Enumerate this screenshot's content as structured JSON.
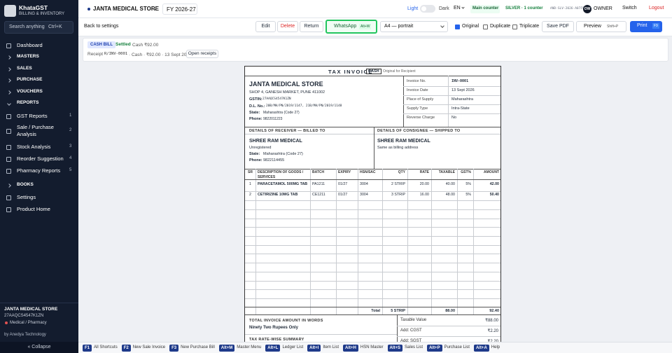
{
  "sidebar": {
    "brand": "KhataGST",
    "tagline": "BILLING & INVENTORY",
    "search": "Search anything",
    "search_key": "Ctrl+K",
    "nav": [
      "Dashboard",
      "MASTERS",
      "SALES",
      "PURCHASE",
      "VOUCHERS",
      "REPORTS"
    ],
    "reports": [
      {
        "label": "GST Reports",
        "key": "1"
      },
      {
        "label": "Sale / Purchase Analysis",
        "key": "2"
      },
      {
        "label": "Stock Analysis",
        "key": "3"
      },
      {
        "label": "Reorder Suggestion",
        "key": "4"
      },
      {
        "label": "Pharmacy Reports",
        "key": "5"
      }
    ],
    "nav_bottom": [
      "BOOKS",
      "Settings",
      "Product Home"
    ],
    "company": {
      "name": "JANTA MEDICAL STORE",
      "gstin": "27AAQCS4547K1ZN",
      "type": "Medical / Pharmacy"
    },
    "credit": "by Anedya Technology",
    "collapse": "« Collapse"
  },
  "topbar": {
    "company": "JANTA MEDICAL STORE",
    "fy": "FY 2026-27",
    "light": "Light",
    "dark": "Dark",
    "lang": "EN",
    "counter": "Main counter",
    "plan": "SILVER · 1 counter",
    "license": "AND-SLV-2026-A07F97",
    "avatar": "OW",
    "user": "OWNER",
    "switch": "Switch",
    "logout": "Logout"
  },
  "toolbar": {
    "back": "Back to settings",
    "edit": "Edit",
    "delete": "Delete",
    "return": "Return",
    "whatsapp": "WhatsApp",
    "whatsapp_key": "Alt+W",
    "paper": "A4 — portrait",
    "original": "Original",
    "duplicate": "Duplicate",
    "triplicate": "Triplicate",
    "save_pdf": "Save PDF",
    "preview": "Preview",
    "preview_key": "Shift+P",
    "print": "Print",
    "print_key": "F9"
  },
  "status": {
    "badge": "CASH BILL",
    "state": "Settled",
    "summary": "Cash ₹92.00",
    "receipt_label": "Receipt",
    "receipt_no": "R/INV-0001",
    "receipt_detail": "· Cash · ₹92.00 · 13 Sept 2026",
    "open": "Open receipts"
  },
  "invoice": {
    "title": "TAX INVOICE",
    "mode": "CASH",
    "copy": "Original for Recipient",
    "seller": {
      "name": "JANTA MEDICAL STORE",
      "address": "SHOP 4, GANESH MARKET, PUNE 411002",
      "gstin_label": "GSTIN:",
      "gstin": "27AAQCS4547K1ZN",
      "dl_label": "D.L. No.:",
      "dl": "20B/MH/PN/2019/1147, 21B/MH/PN/2019/1148",
      "state_label": "State:",
      "state": "Maharashtra (Code 27)",
      "phone_label": "Phone:",
      "phone": "9822011223"
    },
    "meta": [
      {
        "label": "Invoice No.",
        "value": "INV-0001"
      },
      {
        "label": "Invoice Date",
        "value": "13 Sept 2026"
      },
      {
        "label": "Place of Supply",
        "value": "Maharashtra"
      },
      {
        "label": "Supply Type",
        "value": "Intra-State"
      },
      {
        "label": "Reverse Charge",
        "value": "No"
      }
    ],
    "receiver": {
      "heading": "DETAILS OF RECEIVER — BILLED TO",
      "name": "SHREE RAM MEDICAL",
      "reg": "Unregistered",
      "state_label": "State:",
      "state": "Maharashtra (Code 27)",
      "phone_label": "Phone:",
      "phone": "9822114455"
    },
    "consignee": {
      "heading": "DETAILS OF CONSIGNEE — SHIPPED TO",
      "name": "SHREE RAM MEDICAL",
      "note": "Same as billing address"
    },
    "items": {
      "headers": [
        "SR",
        "DESCRIPTION OF GOODS / SERVICES",
        "BATCH",
        "EXPIRY",
        "HSN/SAC",
        "QTY",
        "RATE",
        "TAXABLE",
        "GST%",
        "AMOUNT"
      ],
      "rows": [
        [
          "1",
          "PARACETAMOL 500MG TAB",
          "PA1211",
          "01/27",
          "3004",
          "2 STRIP",
          "20.00",
          "40.00",
          "5%",
          "42.00"
        ],
        [
          "2",
          "CETIRIZINE 10MG TAB",
          "CE1211",
          "01/27",
          "3004",
          "3 STRIP",
          "16.00",
          "48.00",
          "5%",
          "50.40"
        ]
      ],
      "total": {
        "label": "Total",
        "qty": "5 STRIP",
        "taxable": "88.00",
        "amount": "92.40"
      }
    },
    "words_heading": "TOTAL INVOICE AMOUNT IN WORDS",
    "words": "Ninety Two Rupees Only",
    "tax_summary_heading": "TAX RATE-WISE SUMMARY",
    "totals": [
      {
        "label": "Taxable Value",
        "value": "₹88.00"
      },
      {
        "label": "Add: CGST",
        "value": "₹2.20"
      },
      {
        "label": "Add: SGST",
        "value": "₹2.20"
      }
    ]
  },
  "shortcuts": [
    {
      "key": "F1",
      "label": "All Shortcuts"
    },
    {
      "key": "F2",
      "label": "New Sale Invoice"
    },
    {
      "key": "F3",
      "label": "New Purchase Bill"
    },
    {
      "key": "Alt+M",
      "label": "Master Menu"
    },
    {
      "key": "Alt+L",
      "label": "Ledger List"
    },
    {
      "key": "Alt+I",
      "label": "Item List"
    },
    {
      "key": "Alt+H",
      "label": "HSN Master"
    },
    {
      "key": "Alt+S",
      "label": "Sales List"
    },
    {
      "key": "Alt+P",
      "label": "Purchase List"
    },
    {
      "key": "Alt+A",
      "label": "Help"
    }
  ]
}
